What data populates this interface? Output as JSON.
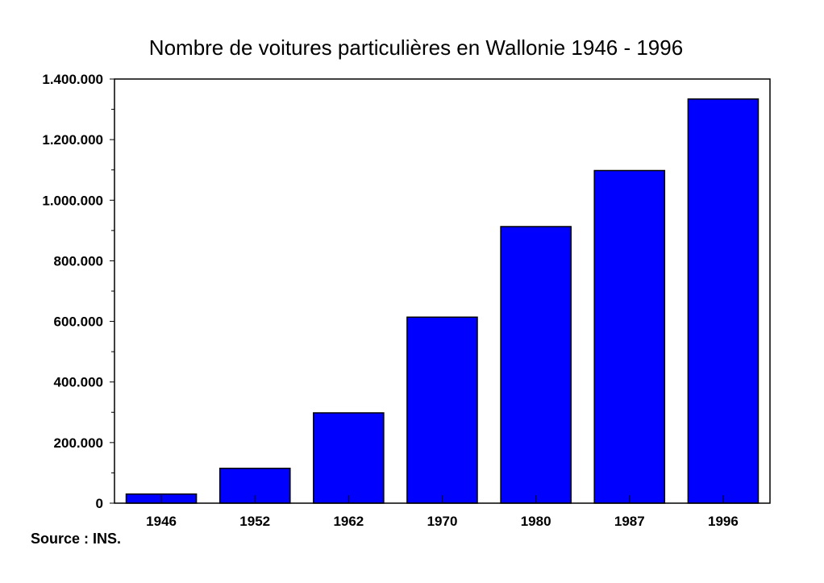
{
  "chart_data": {
    "type": "bar",
    "title": "Nombre de voitures particulières en Wallonie  1946 - 1996",
    "xlabel": "",
    "ylabel": "",
    "categories": [
      "1946",
      "1952",
      "1962",
      "1970",
      "1980",
      "1987",
      "1996"
    ],
    "values": [
      30000,
      115000,
      298000,
      614000,
      913000,
      1098000,
      1334000
    ],
    "ylim": [
      0,
      1400000
    ],
    "y_ticks": [
      0,
      200000,
      400000,
      600000,
      800000,
      1000000,
      1200000,
      1400000
    ],
    "y_tick_labels": [
      "0",
      "200.000",
      "400.000",
      "600.000",
      "800.000",
      "1.000.000",
      "1.200.000",
      "1.400.000"
    ],
    "bar_color": "#0000ff",
    "grid": false,
    "legend": "none",
    "source": "Source : INS."
  }
}
